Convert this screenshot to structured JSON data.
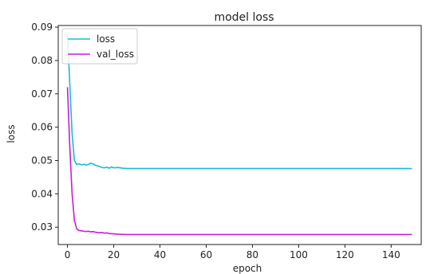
{
  "chart_data": {
    "type": "line",
    "title": "model loss",
    "xlabel": "epoch",
    "ylabel": "loss",
    "xlim": [
      -4,
      153
    ],
    "ylim": [
      0.0248,
      0.0905
    ],
    "xticks": [
      0,
      20,
      40,
      60,
      80,
      100,
      120,
      140
    ],
    "yticks": [
      0.03,
      0.04,
      0.05,
      0.06,
      0.07,
      0.08,
      0.09
    ],
    "ytick_labels": [
      "0.03",
      "0.04",
      "0.05",
      "0.06",
      "0.07",
      "0.08",
      "0.09"
    ],
    "grid": false,
    "legend_position": "upper-left",
    "series": [
      {
        "name": "loss",
        "color": "#17becf",
        "points": [
          [
            0,
            0.088
          ],
          [
            1,
            0.073
          ],
          [
            2,
            0.058
          ],
          [
            3,
            0.05
          ],
          [
            4,
            0.0488
          ],
          [
            5,
            0.049
          ],
          [
            6,
            0.0487
          ],
          [
            7,
            0.0489
          ],
          [
            8,
            0.0486
          ],
          [
            9,
            0.0488
          ],
          [
            10,
            0.0492
          ],
          [
            11,
            0.049
          ],
          [
            12,
            0.0486
          ],
          [
            13,
            0.0484
          ],
          [
            14,
            0.0482
          ],
          [
            15,
            0.0479
          ],
          [
            16,
            0.0478
          ],
          [
            17,
            0.048
          ],
          [
            18,
            0.0477
          ],
          [
            19,
            0.0481
          ],
          [
            20,
            0.0478
          ],
          [
            22,
            0.0479
          ],
          [
            24,
            0.0477
          ],
          [
            26,
            0.0476
          ],
          [
            30,
            0.0476
          ],
          [
            40,
            0.0476
          ],
          [
            60,
            0.0476
          ],
          [
            80,
            0.0476
          ],
          [
            100,
            0.0476
          ],
          [
            120,
            0.0476
          ],
          [
            140,
            0.0476
          ],
          [
            149,
            0.0476
          ]
        ]
      },
      {
        "name": "val_loss",
        "color": "#c41ed9",
        "points": [
          [
            0,
            0.072
          ],
          [
            1,
            0.054
          ],
          [
            2,
            0.04
          ],
          [
            3,
            0.032
          ],
          [
            4,
            0.0295
          ],
          [
            5,
            0.029
          ],
          [
            6,
            0.0289
          ],
          [
            7,
            0.0288
          ],
          [
            8,
            0.0287
          ],
          [
            9,
            0.0288
          ],
          [
            10,
            0.0286
          ],
          [
            11,
            0.0287
          ],
          [
            12,
            0.0285
          ],
          [
            13,
            0.0284
          ],
          [
            14,
            0.0283
          ],
          [
            15,
            0.0284
          ],
          [
            16,
            0.0282
          ],
          [
            17,
            0.0283
          ],
          [
            18,
            0.0281
          ],
          [
            20,
            0.028
          ],
          [
            22,
            0.0279
          ],
          [
            25,
            0.0278
          ],
          [
            30,
            0.0278
          ],
          [
            40,
            0.0278
          ],
          [
            60,
            0.0278
          ],
          [
            80,
            0.0278
          ],
          [
            100,
            0.0278
          ],
          [
            120,
            0.0278
          ],
          [
            140,
            0.0278
          ],
          [
            149,
            0.0278
          ]
        ]
      }
    ]
  }
}
